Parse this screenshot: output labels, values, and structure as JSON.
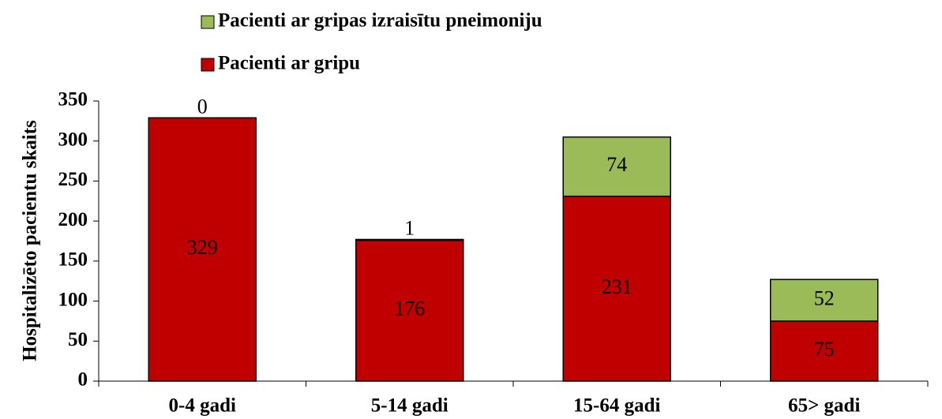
{
  "chart_data": {
    "type": "stacked_bar",
    "categories": [
      "0-4 gadi",
      "5-14 gadi",
      "15-64 gadi",
      "65> gadi"
    ],
    "series": [
      {
        "name": "Pacienti ar gripu",
        "color": "#c00000",
        "values": [
          329,
          176,
          231,
          75
        ]
      },
      {
        "name": "Pacienti ar gripas izraisītu pneimoniju",
        "color": "#9bbb59",
        "values": [
          0,
          1,
          74,
          52
        ]
      }
    ],
    "y_label": "Hospitalizēto pacientu skaits",
    "ylim": [
      0,
      350
    ],
    "yticks": [
      0,
      50,
      100,
      150,
      200,
      250,
      300,
      350
    ],
    "legend": "top"
  }
}
